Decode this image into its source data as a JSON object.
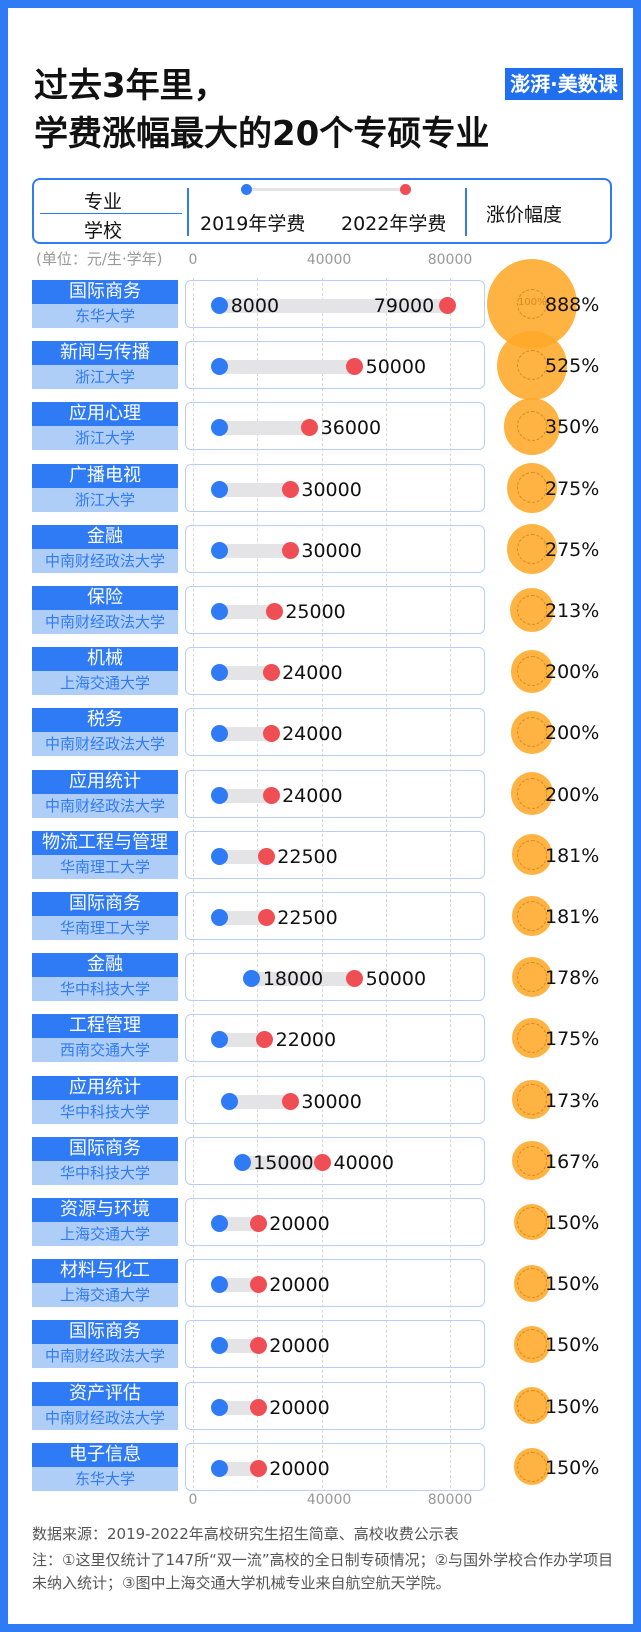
{
  "title_line1": "过去3年里，",
  "title_line2": "学费涨幅最大的20个专硕专业",
  "brand": "澎湃·美数课",
  "header": {
    "major_label": "专业",
    "school_label": "学校",
    "legend_2019": "2019年学费",
    "legend_2022": "2022年学费",
    "increase_label": "涨价幅度"
  },
  "unit": "(单位：元/生·学年)",
  "axis_ticks": [
    "0",
    "40000",
    "80000"
  ],
  "ring_label": "100%",
  "chart_data": {
    "type": "dumbbell",
    "title": "学费涨幅最大的20个专硕专业",
    "xlabel": "(单位：元/生·学年)",
    "xlim": [
      0,
      80000
    ],
    "series_names": [
      "2019年学费",
      "2022年学费"
    ],
    "rows": [
      {
        "major": "国际商务",
        "school": "东华大学",
        "fee_2019": 8000,
        "fee_2022": 79000,
        "show_2019": true,
        "increase": 888,
        "increase_label": "888%"
      },
      {
        "major": "新闻与传播",
        "school": "浙江大学",
        "fee_2019": 8000,
        "fee_2022": 50000,
        "show_2019": false,
        "increase": 525,
        "increase_label": "525%"
      },
      {
        "major": "应用心理",
        "school": "浙江大学",
        "fee_2019": 8000,
        "fee_2022": 36000,
        "show_2019": false,
        "increase": 350,
        "increase_label": "350%"
      },
      {
        "major": "广播电视",
        "school": "浙江大学",
        "fee_2019": 8000,
        "fee_2022": 30000,
        "show_2019": false,
        "increase": 275,
        "increase_label": "275%"
      },
      {
        "major": "金融",
        "school": "中南财经政法大学",
        "fee_2019": 8000,
        "fee_2022": 30000,
        "show_2019": false,
        "increase": 275,
        "increase_label": "275%"
      },
      {
        "major": "保险",
        "school": "中南财经政法大学",
        "fee_2019": 8000,
        "fee_2022": 25000,
        "show_2019": false,
        "increase": 213,
        "increase_label": "213%"
      },
      {
        "major": "机械",
        "school": "上海交通大学",
        "fee_2019": 8000,
        "fee_2022": 24000,
        "show_2019": false,
        "increase": 200,
        "increase_label": "200%"
      },
      {
        "major": "税务",
        "school": "中南财经政法大学",
        "fee_2019": 8000,
        "fee_2022": 24000,
        "show_2019": false,
        "increase": 200,
        "increase_label": "200%"
      },
      {
        "major": "应用统计",
        "school": "中南财经政法大学",
        "fee_2019": 8000,
        "fee_2022": 24000,
        "show_2019": false,
        "increase": 200,
        "increase_label": "200%"
      },
      {
        "major": "物流工程与管理",
        "school": "华南理工大学",
        "fee_2019": 8000,
        "fee_2022": 22500,
        "show_2019": false,
        "increase": 181,
        "increase_label": "181%"
      },
      {
        "major": "国际商务",
        "school": "华南理工大学",
        "fee_2019": 8000,
        "fee_2022": 22500,
        "show_2019": false,
        "increase": 181,
        "increase_label": "181%"
      },
      {
        "major": "金融",
        "school": "华中科技大学",
        "fee_2019": 18000,
        "fee_2022": 50000,
        "show_2019": true,
        "increase": 178,
        "increase_label": "178%"
      },
      {
        "major": "工程管理",
        "school": "西南交通大学",
        "fee_2019": 8000,
        "fee_2022": 22000,
        "show_2019": false,
        "increase": 175,
        "increase_label": "175%"
      },
      {
        "major": "应用统计",
        "school": "华中科技大学",
        "fee_2019": 11000,
        "fee_2022": 30000,
        "show_2019": false,
        "increase": 173,
        "increase_label": "173%"
      },
      {
        "major": "国际商务",
        "school": "华中科技大学",
        "fee_2019": 15000,
        "fee_2022": 40000,
        "show_2019": true,
        "increase": 167,
        "increase_label": "167%"
      },
      {
        "major": "资源与环境",
        "school": "上海交通大学",
        "fee_2019": 8000,
        "fee_2022": 20000,
        "show_2019": false,
        "increase": 150,
        "increase_label": "150%"
      },
      {
        "major": "材料与化工",
        "school": "上海交通大学",
        "fee_2019": 8000,
        "fee_2022": 20000,
        "show_2019": false,
        "increase": 150,
        "increase_label": "150%"
      },
      {
        "major": "国际商务",
        "school": "中南财经政法大学",
        "fee_2019": 8000,
        "fee_2022": 20000,
        "show_2019": false,
        "increase": 150,
        "increase_label": "150%"
      },
      {
        "major": "资产评估",
        "school": "中南财经政法大学",
        "fee_2019": 8000,
        "fee_2022": 20000,
        "show_2019": false,
        "increase": 150,
        "increase_label": "150%"
      },
      {
        "major": "电子信息",
        "school": "东华大学",
        "fee_2019": 8000,
        "fee_2022": 20000,
        "show_2019": false,
        "increase": 150,
        "increase_label": "150%"
      }
    ]
  },
  "source": "数据来源：2019-2022年高校研究生招生简章、高校收费公示表",
  "note": "注：①这里仅统计了147所“双一流”高校的全日制专硕情况；②与国外学校合作办学项目未纳入统计；③图中上海交通大学机械专业来自航空航天学院。",
  "colors": {
    "blue": "#2f7bf6",
    "light_blue": "#aecdf7",
    "red": "#f04e55",
    "orange": "#ffa828",
    "bar_gray": "#e4e4e6"
  }
}
